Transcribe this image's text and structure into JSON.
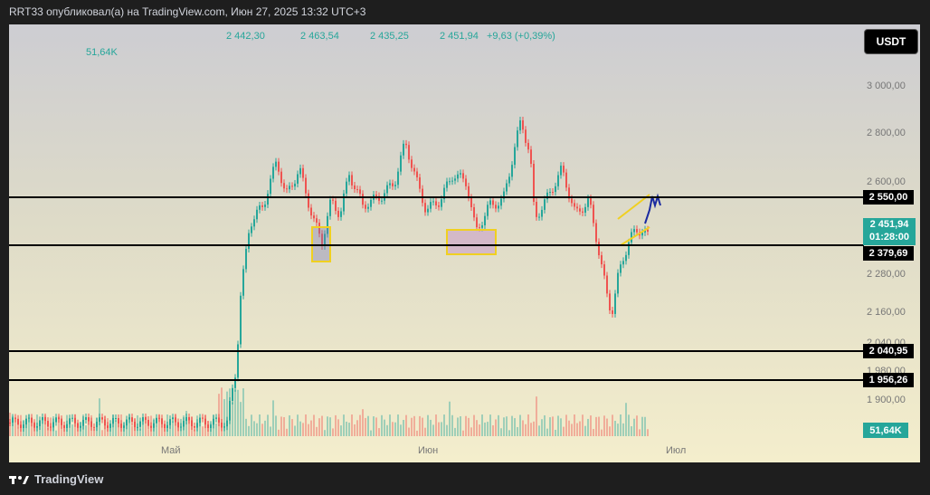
{
  "header": {
    "publisher_text": "RRT33 опубликовал(а) на TradingView.com, Июн 27, 2025 13:32 UTC+3"
  },
  "ohlc": {
    "open": "2 442,30",
    "high": "2 463,54",
    "low": "2 435,25",
    "close": "2 451,94",
    "change": "+9,63 (+0,39%)"
  },
  "volume_value": "51,64K",
  "currency": "USDT",
  "price_ticks": [
    "3 000,00",
    "2 800,00",
    "2 600,00",
    "2 280,00",
    "2 160,00",
    "2 040,00",
    "1 980,00",
    "1 900,00"
  ],
  "levels": [
    "2 550,00",
    "2 379,69",
    "2 040,95",
    "1 956,26"
  ],
  "current_price": "2 451,94",
  "countdown": "01:28:00",
  "volume_badge": "51,64K",
  "months": [
    "Май",
    "Июн",
    "Июл"
  ],
  "footer": {
    "brand": "TradingView"
  },
  "colors": {
    "up": "#26a69a",
    "down": "#ef5350",
    "level_line": "#000000",
    "highlight": "#f0d020",
    "trend": "#1a2aa0"
  },
  "chart_data": {
    "type": "candlestick",
    "x_labels": [
      "Май",
      "Июн",
      "Июл"
    ],
    "horizontal_levels": [
      2550.0,
      2379.69,
      2040.95,
      1956.26
    ],
    "last_price": 2451.94
  }
}
